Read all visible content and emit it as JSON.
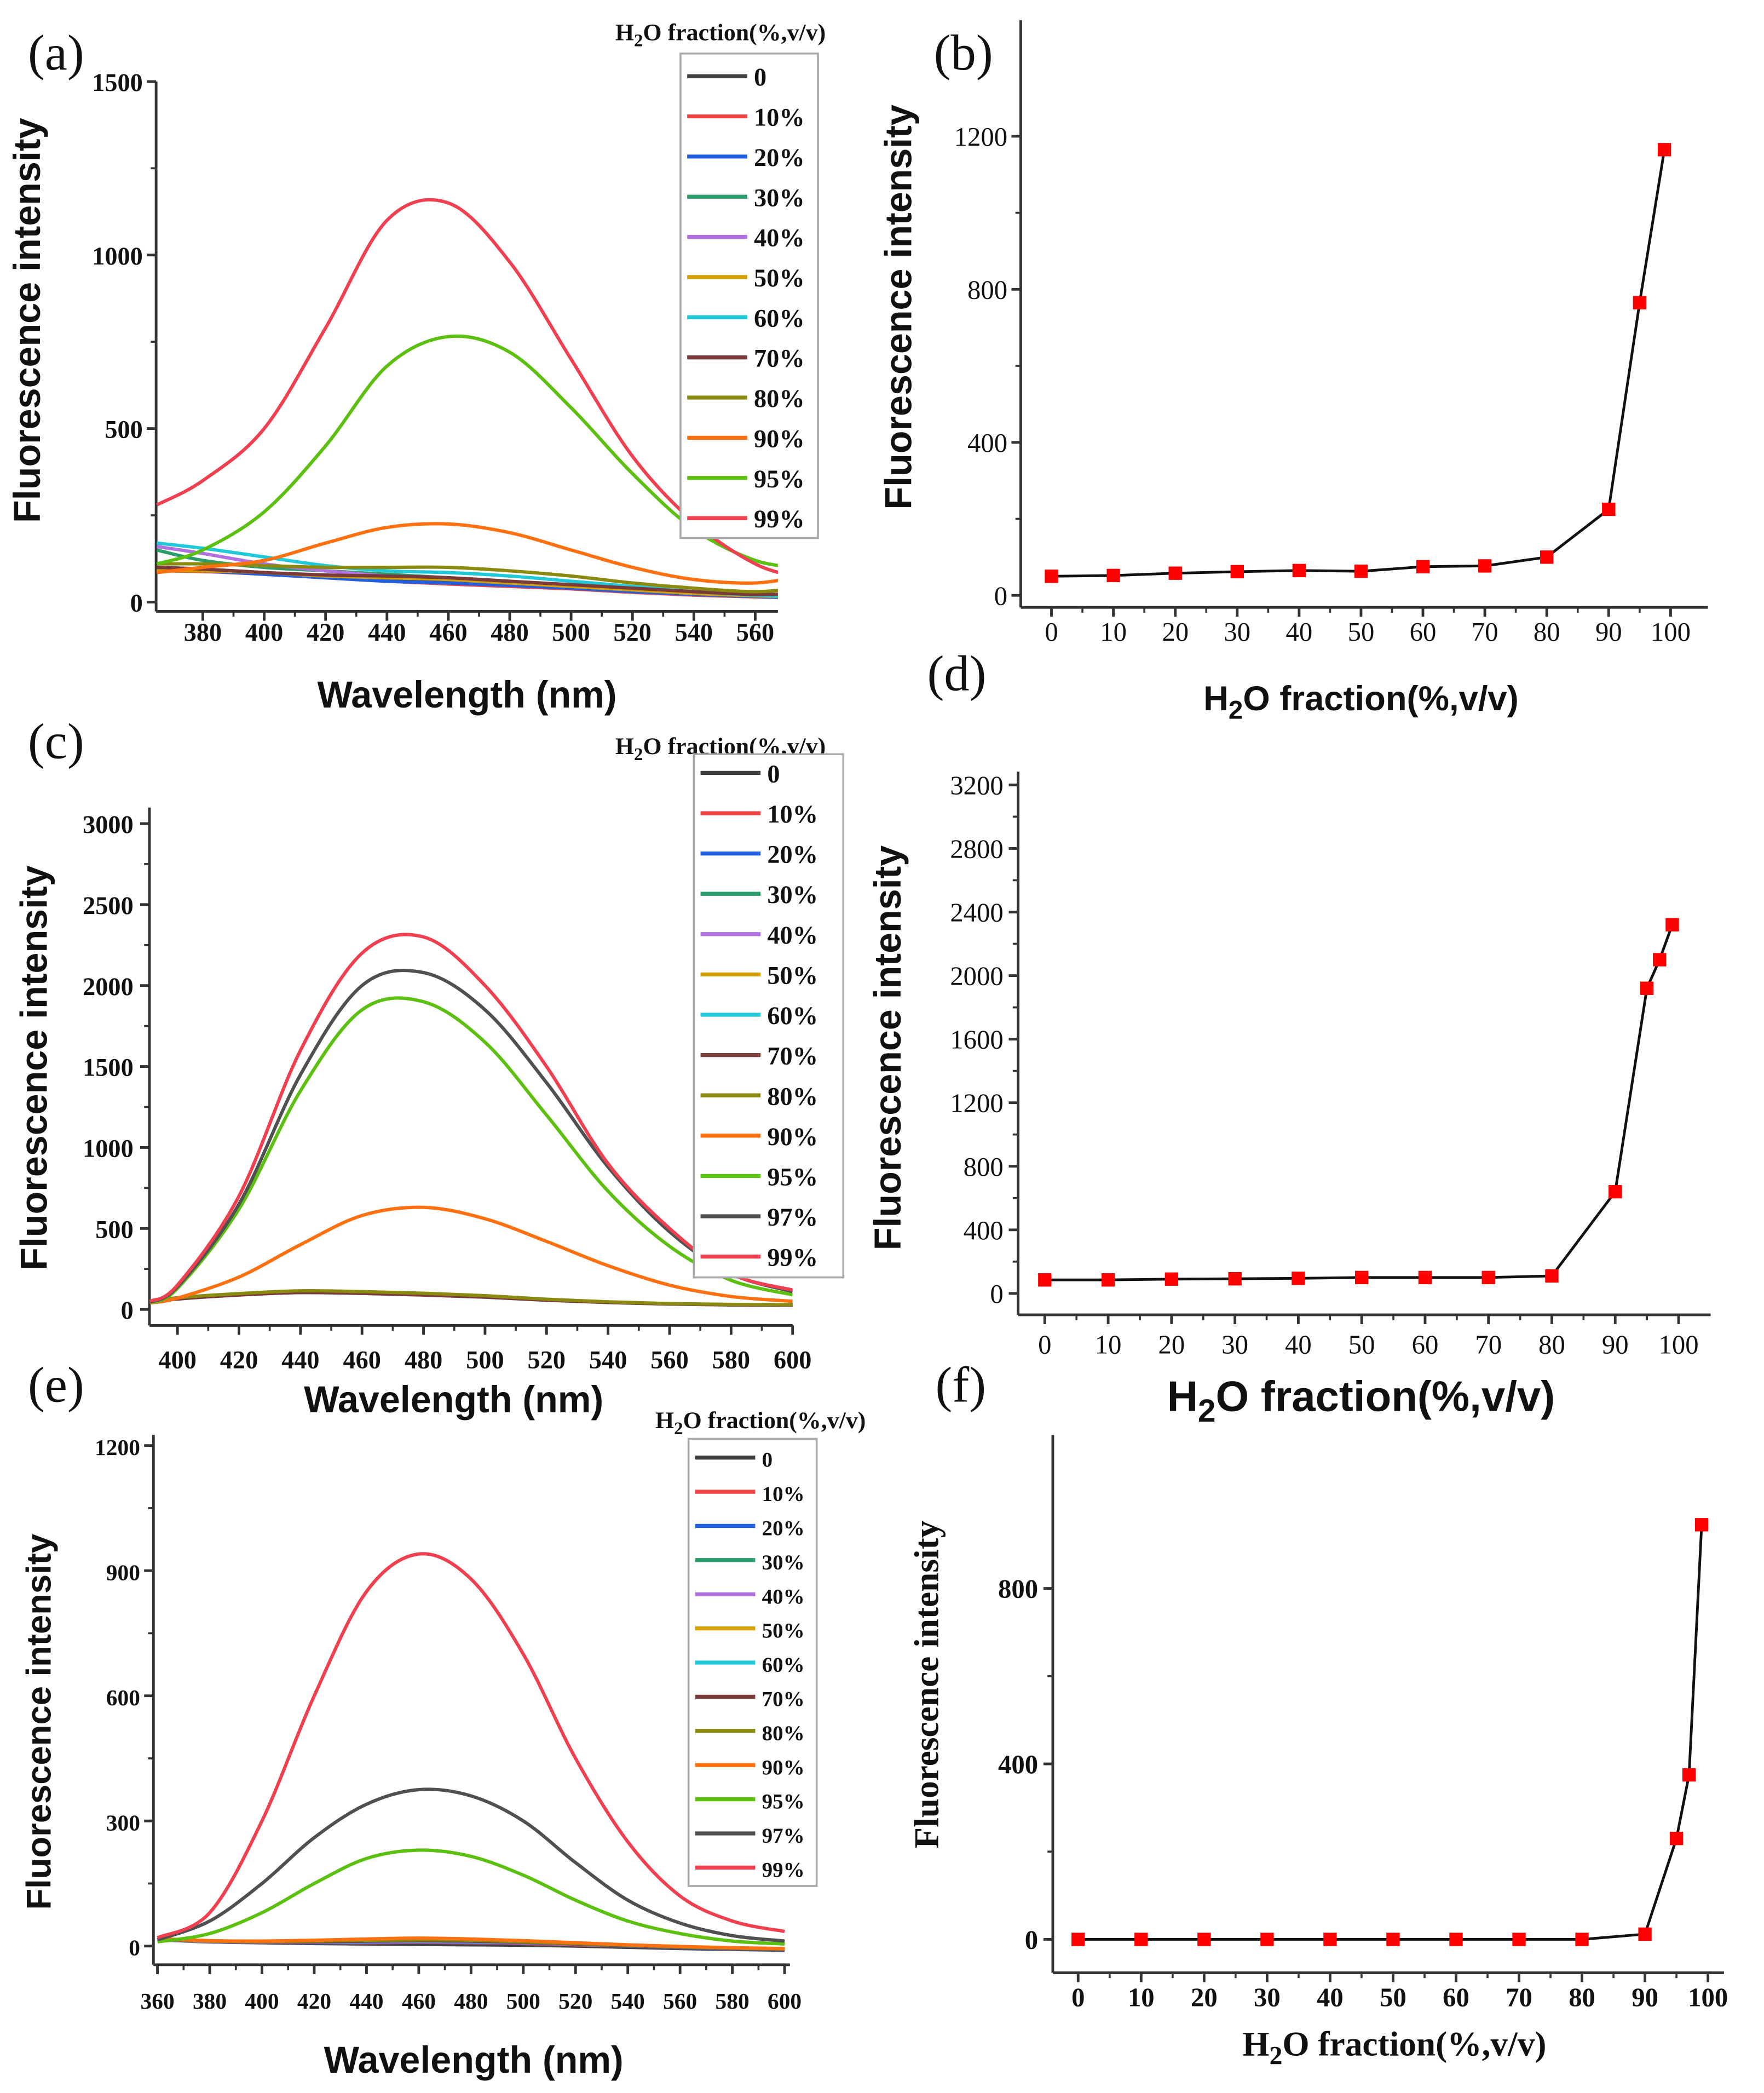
{
  "chart_data": [
    {
      "panel_label": "(a)",
      "type": "line",
      "xlabel": "Wavelength (nm)",
      "ylabel": "Fluorescence intensity",
      "legend_title": "H2O fraction(%,v/v)",
      "legend_placement": "top-right",
      "xlim": [
        365,
        575
      ],
      "ylim": [
        0,
        1500
      ],
      "xticks": [
        380,
        400,
        420,
        440,
        460,
        480,
        500,
        520,
        540,
        560
      ],
      "yticks": [
        0,
        500,
        1000,
        1500
      ],
      "x": [
        365,
        380,
        400,
        420,
        440,
        460,
        480,
        500,
        520,
        540,
        560,
        575
      ],
      "series": [
        {
          "name": "0",
          "color": "#404040",
          "values": [
            100,
            95,
            85,
            75,
            65,
            58,
            50,
            42,
            32,
            24,
            18,
            15
          ]
        },
        {
          "name": "10%",
          "color": "#f04545",
          "values": [
            90,
            88,
            80,
            70,
            60,
            52,
            45,
            38,
            28,
            20,
            15,
            12
          ]
        },
        {
          "name": "20%",
          "color": "#1f5fe0",
          "values": [
            95,
            90,
            80,
            70,
            60,
            55,
            48,
            40,
            30,
            22,
            16,
            12
          ]
        },
        {
          "name": "30%",
          "color": "#2a9d6a",
          "values": [
            150,
            120,
            100,
            90,
            80,
            70,
            60,
            48,
            36,
            26,
            20,
            15
          ]
        },
        {
          "name": "40%",
          "color": "#b070e0",
          "values": [
            160,
            140,
            110,
            90,
            75,
            65,
            55,
            45,
            35,
            25,
            18,
            15
          ]
        },
        {
          "name": "50%",
          "color": "#d4a000",
          "values": [
            90,
            90,
            85,
            75,
            70,
            65,
            55,
            45,
            35,
            25,
            18,
            15
          ]
        },
        {
          "name": "60%",
          "color": "#20c8d8",
          "values": [
            170,
            155,
            130,
            105,
            90,
            85,
            75,
            60,
            45,
            30,
            20,
            15
          ]
        },
        {
          "name": "70%",
          "color": "#7a3a3a",
          "values": [
            100,
            95,
            85,
            78,
            75,
            70,
            60,
            50,
            40,
            30,
            22,
            25
          ]
        },
        {
          "name": "80%",
          "color": "#8a8a10",
          "values": [
            110,
            110,
            105,
            100,
            100,
            100,
            90,
            75,
            55,
            40,
            30,
            40
          ]
        },
        {
          "name": "90%",
          "color": "#ff7010",
          "values": [
            85,
            100,
            120,
            170,
            215,
            225,
            200,
            150,
            100,
            65,
            55,
            75
          ]
        },
        {
          "name": "95%",
          "color": "#5cc010",
          "values": [
            110,
            150,
            260,
            450,
            680,
            765,
            720,
            560,
            370,
            210,
            120,
            100
          ]
        },
        {
          "name": "99%",
          "color": "#f04050",
          "values": [
            280,
            350,
            500,
            790,
            1100,
            1150,
            980,
            700,
            420,
            230,
            110,
            70
          ]
        }
      ]
    },
    {
      "panel_label": "(b)",
      "type": "line",
      "xlabel": "H2O fraction(%,v/v)",
      "ylabel": "Fluorescence intensity",
      "xlim": [
        0,
        100
      ],
      "ylim": [
        0,
        1500
      ],
      "xticks": [
        0,
        10,
        20,
        30,
        40,
        50,
        60,
        70,
        80,
        90,
        100
      ],
      "yticks": [
        0,
        400,
        800,
        1200
      ],
      "x": [
        0,
        10,
        20,
        30,
        40,
        50,
        60,
        70,
        80,
        90,
        95,
        99
      ],
      "values": [
        50,
        52,
        58,
        62,
        65,
        63,
        75,
        77,
        100,
        225,
        765,
        1165
      ],
      "marker_color": "#ff0000"
    },
    {
      "panel_label": "(c)",
      "type": "line",
      "xlabel": "Wavelength (nm)",
      "ylabel": "Fluorescence intensity",
      "legend_title": "H2O fraction(%,v/v)",
      "legend_placement": "top-right",
      "xlim": [
        391,
        600
      ],
      "ylim": [
        0,
        3100
      ],
      "xticks": [
        400,
        420,
        440,
        460,
        480,
        500,
        520,
        540,
        560,
        580,
        600
      ],
      "yticks": [
        0,
        500,
        1000,
        1500,
        2000,
        2500,
        3000
      ],
      "x": [
        391,
        400,
        420,
        440,
        460,
        480,
        500,
        520,
        540,
        560,
        580,
        600
      ],
      "series": [
        {
          "name": "0",
          "color": "#404040",
          "values": [
            50,
            70,
            95,
            110,
            105,
            95,
            80,
            60,
            45,
            35,
            30,
            28
          ]
        },
        {
          "name": "10%",
          "color": "#f04545",
          "values": [
            48,
            68,
            92,
            108,
            104,
            94,
            80,
            60,
            45,
            35,
            30,
            28
          ]
        },
        {
          "name": "20%",
          "color": "#1f5fe0",
          "values": [
            47,
            67,
            93,
            107,
            103,
            93,
            79,
            60,
            45,
            35,
            30,
            28
          ]
        },
        {
          "name": "30%",
          "color": "#2a9d6a",
          "values": [
            46,
            66,
            92,
            106,
            102,
            92,
            78,
            59,
            44,
            34,
            29,
            27
          ]
        },
        {
          "name": "40%",
          "color": "#b070e0",
          "values": [
            46,
            66,
            91,
            105,
            101,
            91,
            77,
            58,
            44,
            34,
            29,
            27
          ]
        },
        {
          "name": "50%",
          "color": "#d4a000",
          "values": [
            45,
            65,
            90,
            105,
            100,
            90,
            77,
            58,
            44,
            34,
            29,
            27
          ]
        },
        {
          "name": "60%",
          "color": "#20c8d8",
          "values": [
            45,
            65,
            90,
            104,
            100,
            90,
            76,
            58,
            43,
            33,
            28,
            26
          ]
        },
        {
          "name": "70%",
          "color": "#7a3a3a",
          "values": [
            44,
            64,
            89,
            104,
            99,
            89,
            76,
            57,
            43,
            33,
            28,
            26
          ]
        },
        {
          "name": "80%",
          "color": "#8a8a10",
          "values": [
            50,
            72,
            98,
            115,
            110,
            100,
            85,
            63,
            47,
            36,
            31,
            29
          ]
        },
        {
          "name": "90%",
          "color": "#ff7010",
          "values": [
            40,
            70,
            200,
            400,
            580,
            630,
            560,
            420,
            270,
            150,
            80,
            50
          ]
        },
        {
          "name": "95%",
          "color": "#5cc010",
          "values": [
            40,
            130,
            620,
            1350,
            1850,
            1900,
            1650,
            1200,
            730,
            390,
            180,
            90
          ]
        },
        {
          "name": "97%",
          "color": "#505050",
          "values": [
            45,
            140,
            650,
            1450,
            2000,
            2080,
            1850,
            1400,
            880,
            480,
            220,
            110
          ]
        },
        {
          "name": "99%",
          "color": "#f04050",
          "values": [
            50,
            150,
            700,
            1600,
            2200,
            2300,
            2000,
            1500,
            900,
            500,
            220,
            120
          ]
        }
      ]
    },
    {
      "panel_label": "(d)",
      "type": "line",
      "xlabel": "H2O fraction(%,v/v)",
      "ylabel": "Fluorescence intensity",
      "xlim": [
        0,
        100
      ],
      "ylim": [
        0,
        3200
      ],
      "xticks": [
        0,
        10,
        20,
        30,
        40,
        50,
        60,
        70,
        80,
        90,
        100
      ],
      "yticks": [
        0,
        400,
        800,
        1200,
        1600,
        2000,
        2400,
        2800,
        3200
      ],
      "x": [
        0,
        10,
        20,
        30,
        40,
        50,
        60,
        70,
        80,
        90,
        95,
        97,
        99
      ],
      "values": [
        85,
        85,
        90,
        92,
        95,
        100,
        100,
        100,
        110,
        640,
        1920,
        2100,
        2320
      ],
      "marker_color": "#ff0000"
    },
    {
      "panel_label": "(e)",
      "type": "line",
      "xlabel": "Wavelength (nm)",
      "ylabel": "Fluorescence intensity",
      "legend_title": "H2O fraction(%,v/v)",
      "legend_placement": "top-right",
      "xlim": [
        359,
        600
      ],
      "ylim": [
        0,
        1200
      ],
      "xticks": [
        360,
        380,
        400,
        420,
        440,
        460,
        480,
        500,
        520,
        540,
        560,
        580,
        600
      ],
      "yticks": [
        0,
        300,
        600,
        900,
        1200
      ],
      "x": [
        360,
        380,
        400,
        420,
        440,
        460,
        480,
        500,
        520,
        540,
        560,
        580,
        600
      ],
      "series": [
        {
          "name": "0",
          "color": "#404040",
          "values": [
            15,
            10,
            8,
            6,
            5,
            4,
            3,
            2,
            0,
            -3,
            -6,
            -8,
            -10
          ]
        },
        {
          "name": "10%",
          "color": "#f04545",
          "values": [
            15,
            11,
            9,
            8,
            8,
            9,
            8,
            6,
            3,
            0,
            -4,
            -7,
            -9
          ]
        },
        {
          "name": "20%",
          "color": "#1f5fe0",
          "values": [
            15,
            11,
            9,
            8,
            9,
            10,
            9,
            7,
            4,
            0,
            -4,
            -7,
            -9
          ]
        },
        {
          "name": "30%",
          "color": "#2a9d6a",
          "values": [
            15,
            11,
            9,
            9,
            10,
            11,
            10,
            8,
            4,
            1,
            -3,
            -6,
            -8
          ]
        },
        {
          "name": "40%",
          "color": "#b070e0",
          "values": [
            15,
            11,
            9,
            9,
            10,
            11,
            10,
            8,
            4,
            1,
            -3,
            -6,
            -8
          ]
        },
        {
          "name": "50%",
          "color": "#d4a000",
          "values": [
            16,
            12,
            10,
            10,
            12,
            13,
            12,
            9,
            5,
            1,
            -3,
            -6,
            -8
          ]
        },
        {
          "name": "60%",
          "color": "#20c8d8",
          "values": [
            16,
            12,
            10,
            10,
            11,
            12,
            11,
            9,
            5,
            1,
            -3,
            -6,
            -8
          ]
        },
        {
          "name": "70%",
          "color": "#7a3a3a",
          "values": [
            16,
            12,
            10,
            10,
            12,
            13,
            12,
            9,
            5,
            1,
            -3,
            -6,
            -8
          ]
        },
        {
          "name": "80%",
          "color": "#8a8a10",
          "values": [
            17,
            12,
            11,
            12,
            14,
            15,
            14,
            10,
            6,
            2,
            -2,
            -5,
            -7
          ]
        },
        {
          "name": "90%",
          "color": "#ff7010",
          "values": [
            18,
            13,
            12,
            14,
            17,
            19,
            17,
            13,
            8,
            3,
            -1,
            -4,
            -6
          ]
        },
        {
          "name": "95%",
          "color": "#5cc010",
          "values": [
            10,
            30,
            80,
            150,
            210,
            230,
            215,
            170,
            110,
            60,
            30,
            12,
            5
          ]
        },
        {
          "name": "97%",
          "color": "#505050",
          "values": [
            15,
            60,
            150,
            260,
            340,
            375,
            360,
            300,
            200,
            110,
            55,
            25,
            12
          ]
        },
        {
          "name": "99%",
          "color": "#f04050",
          "values": [
            20,
            80,
            300,
            600,
            850,
            940,
            880,
            700,
            450,
            250,
            120,
            60,
            35
          ]
        }
      ]
    },
    {
      "panel_label": "(f)",
      "type": "line",
      "xlabel": "H2O fraction(%,v/v)",
      "ylabel": "Fluorescence intensity",
      "xlim": [
        0,
        100
      ],
      "ylim": [
        -80,
        1220
      ],
      "xticks": [
        0,
        10,
        20,
        30,
        40,
        50,
        60,
        70,
        80,
        90,
        100
      ],
      "yticks": [
        0,
        400,
        800
      ],
      "x": [
        0,
        10,
        20,
        30,
        40,
        50,
        60,
        70,
        80,
        90,
        95,
        97,
        99
      ],
      "values": [
        0,
        0,
        0,
        0,
        0,
        0,
        0,
        0,
        0,
        12,
        230,
        375,
        945
      ],
      "marker_color": "#ff0000"
    }
  ]
}
